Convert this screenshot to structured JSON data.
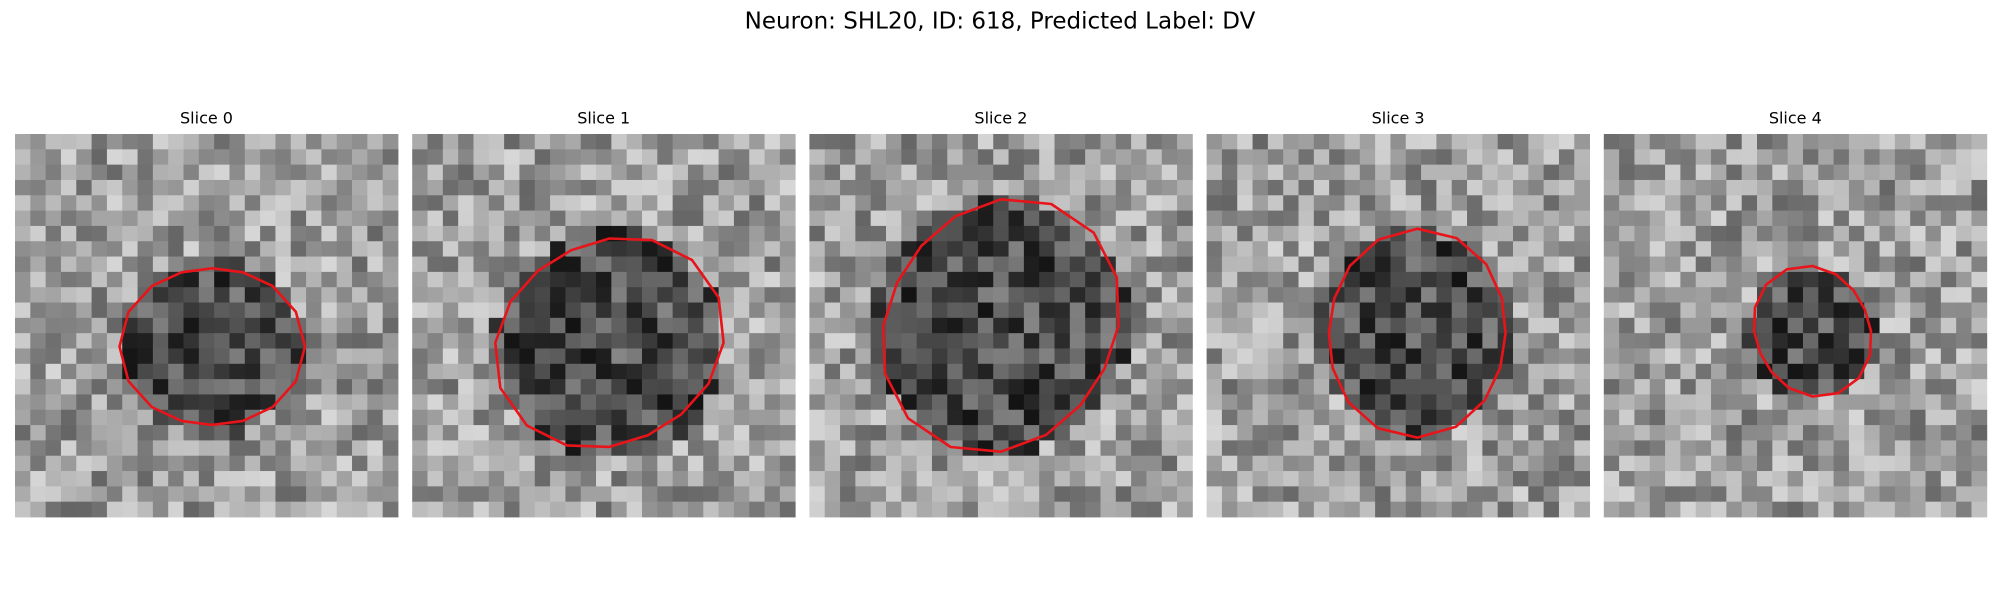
{
  "title": "Neuron: SHL20, ID: 618, Predicted Label: DV",
  "panels": [
    {
      "title": "Slice 0"
    },
    {
      "title": "Slice 1"
    },
    {
      "title": "Slice 2"
    },
    {
      "title": "Slice 3"
    },
    {
      "title": "Slice 4"
    }
  ]
}
